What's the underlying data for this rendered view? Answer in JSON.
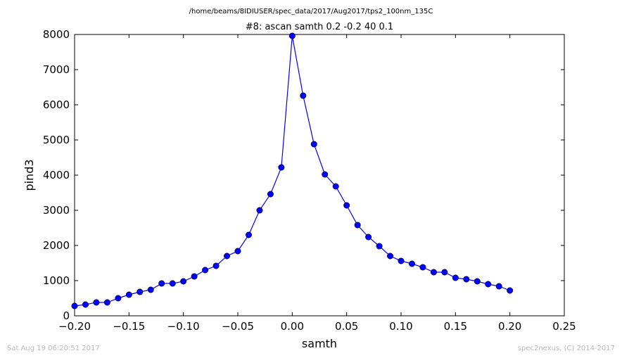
{
  "footer": {
    "timestamp": "Sat Aug 19 06:20:51 2017",
    "credit": "spec2nexus, (C) 2014-2017"
  },
  "chart_data": {
    "type": "line",
    "suptitle": "/home/beams/8IDIUSER/spec_data/2017/Aug2017/tps2_100nm_135C",
    "title": "#8: ascan  samth 0.2 -0.2  40 0.1",
    "xlabel": "samth",
    "ylabel": "pind3",
    "xlim": [
      -0.2,
      0.25
    ],
    "ylim": [
      0,
      8000
    ],
    "xticks": [
      -0.2,
      -0.15,
      -0.1,
      -0.05,
      0.0,
      0.05,
      0.1,
      0.15,
      0.2,
      0.25
    ],
    "xtick_labels": [
      "−0.20",
      "−0.15",
      "−0.10",
      "−0.05",
      "0.00",
      "0.05",
      "0.10",
      "0.15",
      "0.20",
      "0.25"
    ],
    "yticks": [
      0,
      1000,
      2000,
      3000,
      4000,
      5000,
      6000,
      7000,
      8000
    ],
    "ytick_labels": [
      "0",
      "1000",
      "2000",
      "3000",
      "4000",
      "5000",
      "6000",
      "7000",
      "8000"
    ],
    "grid": false,
    "color": "#0000ff",
    "series": [
      {
        "x": [
          -0.2,
          -0.19,
          -0.18,
          -0.17,
          -0.16,
          -0.15,
          -0.14,
          -0.13,
          -0.12,
          -0.11,
          -0.1,
          -0.09,
          -0.08,
          -0.07,
          -0.06,
          -0.05,
          -0.04,
          -0.03,
          -0.02,
          -0.01,
          0.0,
          0.01,
          0.02,
          0.03,
          0.04,
          0.05,
          0.06,
          0.07,
          0.08,
          0.09,
          0.1,
          0.11,
          0.12,
          0.13,
          0.14,
          0.15,
          0.16,
          0.17,
          0.18,
          0.19,
          0.2
        ],
        "y": [
          280,
          320,
          380,
          380,
          500,
          600,
          680,
          740,
          920,
          920,
          980,
          1120,
          1300,
          1420,
          1700,
          1840,
          2300,
          3000,
          3460,
          4220,
          7960,
          6260,
          4880,
          4020,
          3680,
          3140,
          2580,
          2240,
          1980,
          1700,
          1560,
          1480,
          1380,
          1240,
          1240,
          1080,
          1040,
          980,
          900,
          840,
          720
        ]
      }
    ]
  }
}
